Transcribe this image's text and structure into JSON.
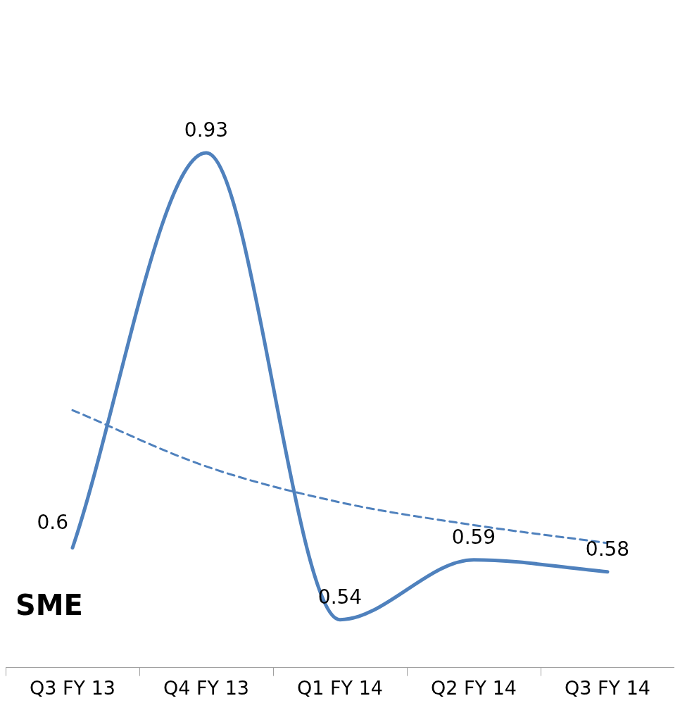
{
  "chart_data": {
    "type": "line",
    "title": "SME",
    "categories": [
      "Q3 FY 13",
      "Q4 FY 13",
      "Q1 FY 14",
      "Q2 FY 14",
      "Q3 FY 14"
    ],
    "series": [
      {
        "color": "#4f81bd",
        "values": [
          0.6,
          0.93,
          0.54,
          0.59,
          0.58
        ],
        "value_labels": [
          "0.6",
          "0.93",
          "0.54",
          "0.59",
          "0.58"
        ]
      },
      {
        "type": "line",
        "line_style": "dashed",
        "color": "#4f81bd",
        "values": [
          0.715,
          0.668,
          0.638,
          0.619,
          0.604
        ]
      }
    ],
    "tick_labels": "x",
    "marker": "none",
    "grid": false,
    "legend": false
  }
}
